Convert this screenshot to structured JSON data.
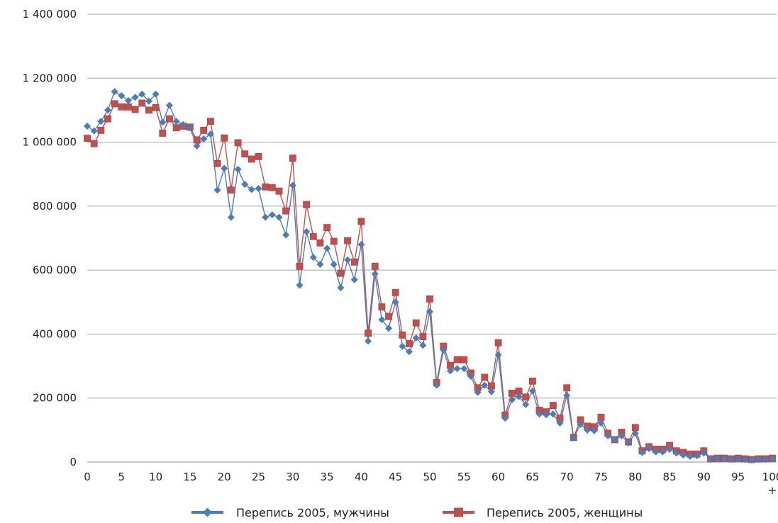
{
  "chart_data": {
    "type": "line",
    "title": "",
    "xlabel": "",
    "ylabel": "",
    "ylim": [
      0,
      1400000
    ],
    "grid": "horizontal",
    "legend_position": "bottom",
    "y_ticks": [
      {
        "value": 0,
        "label": "0"
      },
      {
        "value": 200000,
        "label": "200 000"
      },
      {
        "value": 400000,
        "label": "400 000"
      },
      {
        "value": 600000,
        "label": "600 000"
      },
      {
        "value": 800000,
        "label": "800 000"
      },
      {
        "value": 1000000,
        "label": "1 000 000"
      },
      {
        "value": 1200000,
        "label": "1 200 000"
      },
      {
        "value": 1400000,
        "label": "1 400 000"
      }
    ],
    "x_ticks": [
      {
        "value": 0,
        "label": "0"
      },
      {
        "value": 5,
        "label": "5"
      },
      {
        "value": 10,
        "label": "10"
      },
      {
        "value": 15,
        "label": "15"
      },
      {
        "value": 20,
        "label": "20"
      },
      {
        "value": 25,
        "label": "25"
      },
      {
        "value": 30,
        "label": "30"
      },
      {
        "value": 35,
        "label": "35"
      },
      {
        "value": 40,
        "label": "40"
      },
      {
        "value": 45,
        "label": "45"
      },
      {
        "value": 50,
        "label": "50"
      },
      {
        "value": 55,
        "label": "55"
      },
      {
        "value": 60,
        "label": "60"
      },
      {
        "value": 65,
        "label": "65"
      },
      {
        "value": 70,
        "label": "70"
      },
      {
        "value": 75,
        "label": "75"
      },
      {
        "value": 80,
        "label": "80"
      },
      {
        "value": 85,
        "label": "85"
      },
      {
        "value": 90,
        "label": "90"
      },
      {
        "value": 95,
        "label": "95"
      },
      {
        "value": 100,
        "label": "100"
      }
    ],
    "last_label_suffix": "+",
    "series": [
      {
        "name": "Перепись 2005, мужчины",
        "color": "#4a7ebb",
        "marker": "diamond",
        "values": [
          1050000,
          1035000,
          1065000,
          1100000,
          1158000,
          1145000,
          1130000,
          1140000,
          1150000,
          1128000,
          1150000,
          1062000,
          1115000,
          1065000,
          1055000,
          1045000,
          988000,
          1010000,
          1025000,
          850000,
          918000,
          765000,
          915000,
          868000,
          852000,
          855000,
          765000,
          773000,
          765000,
          710000,
          865000,
          553000,
          720000,
          640000,
          618000,
          668000,
          618000,
          545000,
          632000,
          570000,
          680000,
          378000,
          588000,
          445000,
          418000,
          500000,
          362000,
          345000,
          388000,
          365000,
          470000,
          240000,
          350000,
          285000,
          292000,
          292000,
          268000,
          218000,
          240000,
          220000,
          335000,
          137000,
          195000,
          205000,
          180000,
          222000,
          150000,
          148000,
          150000,
          122000,
          208000,
          75000,
          118000,
          100000,
          98000,
          122000,
          82000,
          70000,
          82000,
          60000,
          90000,
          30000,
          42000,
          32000,
          32000,
          40000,
          28000,
          22000,
          18000,
          20000,
          28000,
          10000,
          12000,
          10000,
          8000,
          10000,
          8000,
          6000,
          8000,
          8000,
          10000
        ]
      },
      {
        "name": "Перепись 2005, женщины",
        "color": "#c0504d",
        "marker": "square",
        "values": [
          1012000,
          995000,
          1037000,
          1073000,
          1120000,
          1110000,
          1110000,
          1102000,
          1122000,
          1100000,
          1108000,
          1028000,
          1073000,
          1045000,
          1050000,
          1047000,
          1007000,
          1037000,
          1065000,
          933000,
          1013000,
          850000,
          998000,
          963000,
          947000,
          955000,
          860000,
          858000,
          847000,
          785000,
          950000,
          612000,
          805000,
          705000,
          685000,
          733000,
          690000,
          590000,
          692000,
          625000,
          752000,
          403000,
          612000,
          485000,
          455000,
          530000,
          397000,
          370000,
          435000,
          392000,
          510000,
          248000,
          362000,
          302000,
          320000,
          320000,
          278000,
          232000,
          265000,
          238000,
          373000,
          147000,
          215000,
          222000,
          203000,
          253000,
          162000,
          157000,
          177000,
          137000,
          232000,
          77000,
          132000,
          112000,
          110000,
          140000,
          90000,
          70000,
          93000,
          63000,
          108000,
          35000,
          48000,
          40000,
          40000,
          52000,
          35000,
          30000,
          25000,
          25000,
          35000,
          10000,
          12000,
          12000,
          10000,
          12000,
          10000,
          8000,
          10000,
          10000,
          12000
        ]
      }
    ]
  }
}
